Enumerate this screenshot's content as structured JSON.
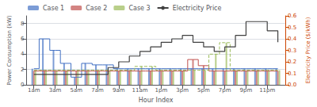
{
  "chart_data": {
    "type": "bar",
    "xlabel": "Hour Index",
    "ylabel": "Power Consumption (kW)",
    "y2label": "Electricity Price ($/kWh)",
    "x": [
      1,
      2,
      3,
      4,
      5,
      6,
      7,
      8,
      9,
      10,
      11,
      12,
      13,
      14,
      15,
      16,
      17,
      18,
      19,
      20,
      21,
      22,
      23,
      24
    ],
    "xlim": [
      0.3,
      24.7
    ],
    "xticks": [
      {
        "value": 1,
        "label": "1am"
      },
      {
        "value": 3,
        "label": "3am"
      },
      {
        "value": 5,
        "label": "5am"
      },
      {
        "value": 7,
        "label": "7am"
      },
      {
        "value": 9,
        "label": "9am"
      },
      {
        "value": 11,
        "label": "11am"
      },
      {
        "value": 13,
        "label": "1pm"
      },
      {
        "value": 15,
        "label": "3pm"
      },
      {
        "value": 17,
        "label": "5pm"
      },
      {
        "value": 19,
        "label": "7pm"
      },
      {
        "value": 21,
        "label": "9pm"
      },
      {
        "value": 23,
        "label": "11pm"
      }
    ],
    "ylim": [
      0,
      9
    ],
    "yticks": [
      0,
      2,
      4,
      6,
      8
    ],
    "y2lim": [
      0,
      0.6
    ],
    "y2ticks": [
      {
        "value": 0,
        "label": "0.0"
      },
      0.1,
      0.2,
      0.3,
      0.4,
      0.5,
      0.6
    ],
    "grid": true,
    "legend": "upper left",
    "series": [
      {
        "name": "Case 1",
        "type": "bar",
        "color": "#4472C4",
        "line_style": "solid",
        "values": [
          2.1,
          6.0,
          4.5,
          2.8,
          1.0,
          2.8,
          2.6,
          2.6,
          2.1,
          2.1,
          2.1,
          2.1,
          2.1,
          2.1,
          2.1,
          2.1,
          2.1,
          2.1,
          2.1,
          2.1,
          2.1,
          2.1,
          2.1,
          2.1
        ]
      },
      {
        "name": "Case 2",
        "type": "bar",
        "color": "#C0504D",
        "line_style": "solid",
        "values": [
          1.8,
          1.8,
          1.8,
          1.8,
          1.8,
          1.8,
          1.8,
          1.8,
          1.8,
          1.8,
          1.8,
          1.8,
          1.8,
          1.8,
          1.8,
          3.3,
          2.5,
          1.8,
          1.8,
          1.8,
          1.8,
          1.8,
          1.8,
          1.8
        ]
      },
      {
        "name": "Case 3",
        "type": "bar",
        "color": "#9BBB59",
        "line_style": "dashed",
        "values": [
          1.9,
          1.9,
          1.9,
          1.9,
          1.9,
          1.9,
          1.9,
          1.9,
          1.9,
          1.9,
          2.4,
          2.4,
          1.9,
          1.9,
          1.9,
          1.9,
          1.9,
          4.0,
          5.5,
          1.9,
          1.9,
          1.9,
          1.9,
          1.9
        ]
      },
      {
        "name": "Electricity Price",
        "type": "line",
        "color": "#404040",
        "line_style": "solid",
        "axis": "y2",
        "values": [
          0.09,
          0.09,
          0.09,
          0.09,
          0.09,
          0.09,
          0.09,
          0.15,
          0.2,
          0.25,
          0.29,
          0.33,
          0.37,
          0.4,
          0.43,
          0.37,
          0.33,
          0.29,
          0.33,
          0.43,
          0.55,
          0.55,
          0.47,
          0.37
        ]
      }
    ]
  }
}
